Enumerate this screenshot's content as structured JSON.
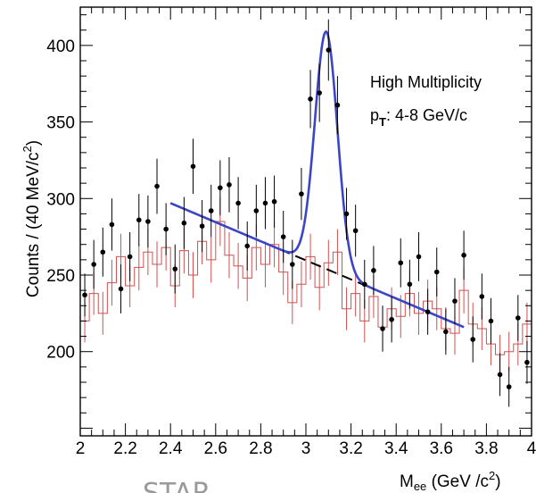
{
  "chart_data": {
    "type": "scatter",
    "xlabel_main": "M",
    "xlabel_sub": "ee",
    "xlabel_tail": " (GeV /c",
    "xlabel_sup": "2",
    "xlabel_end": ")",
    "ylabel_main": "Counts / (40 MeV/c",
    "ylabel_sup": "2",
    "ylabel_end": ")",
    "xlim": [
      2.0,
      4.0
    ],
    "ylim": [
      145,
      425
    ],
    "x_ticks": [
      2,
      2.2,
      2.4,
      2.6,
      2.8,
      3,
      3.2,
      3.4,
      3.6,
      3.8,
      4
    ],
    "x_tick_labels": [
      "2",
      "2.2",
      "2.4",
      "2.6",
      "2.8",
      "3",
      "3.2",
      "3.4",
      "3.6",
      "3.8",
      "4"
    ],
    "y_ticks": [
      200,
      250,
      300,
      350,
      400
    ],
    "y_tick_labels": [
      "200",
      "250",
      "300",
      "350",
      "400"
    ],
    "annotation_line1": "High Multiplicity",
    "annotation_p": "p",
    "annotation_sub": "T",
    "annotation_rest": ": 4-8 GeV/c",
    "watermark": "STAR",
    "series": [
      {
        "kind": "data_points",
        "color": "#000000",
        "x": [
          2.02,
          2.06,
          2.1,
          2.14,
          2.18,
          2.22,
          2.26,
          2.3,
          2.34,
          2.38,
          2.42,
          2.46,
          2.5,
          2.54,
          2.58,
          2.62,
          2.66,
          2.7,
          2.74,
          2.78,
          2.82,
          2.86,
          2.9,
          2.94,
          2.98,
          3.02,
          3.06,
          3.1,
          3.14,
          3.18,
          3.22,
          3.26,
          3.3,
          3.34,
          3.38,
          3.42,
          3.46,
          3.5,
          3.54,
          3.58,
          3.62,
          3.66,
          3.7,
          3.74,
          3.78,
          3.82,
          3.86,
          3.9,
          3.94,
          3.98
        ],
        "y": [
          237,
          257,
          265,
          283,
          241,
          262,
          286,
          285,
          308,
          280,
          254,
          284,
          321,
          282,
          292,
          307,
          309,
          297,
          269,
          292,
          297,
          298,
          275,
          257,
          303,
          365,
          369,
          397,
          361,
          290,
          279,
          244,
          253,
          215,
          221,
          258,
          244,
          262,
          226,
          252,
          213,
          233,
          263,
          208,
          236,
          220,
          185,
          177,
          222,
          193
        ],
        "err": [
          14,
          16,
          16,
          17,
          16,
          16,
          17,
          17,
          18,
          17,
          16,
          17,
          18,
          17,
          17,
          18,
          18,
          17,
          16,
          17,
          17,
          17,
          17,
          16,
          17,
          19,
          19,
          20,
          19,
          17,
          17,
          16,
          16,
          15,
          15,
          16,
          16,
          16,
          15,
          16,
          15,
          15,
          16,
          15,
          15,
          15,
          14,
          13,
          15,
          14
        ]
      },
      {
        "kind": "background_histogram",
        "color": "#d05050",
        "x": [
          2.02,
          2.06,
          2.1,
          2.14,
          2.18,
          2.22,
          2.26,
          2.3,
          2.34,
          2.38,
          2.42,
          2.46,
          2.5,
          2.54,
          2.58,
          2.62,
          2.66,
          2.7,
          2.74,
          2.78,
          2.82,
          2.86,
          2.9,
          2.94,
          2.98,
          3.02,
          3.06,
          3.1,
          3.14,
          3.18,
          3.22,
          3.26,
          3.3,
          3.34,
          3.38,
          3.42,
          3.46,
          3.5,
          3.54,
          3.58,
          3.62,
          3.66,
          3.7,
          3.74,
          3.78,
          3.82,
          3.86,
          3.9,
          3.94,
          3.98
        ],
        "y": [
          220,
          238,
          225,
          245,
          262,
          243,
          255,
          265,
          257,
          268,
          243,
          266,
          250,
          272,
          260,
          285,
          263,
          256,
          248,
          268,
          257,
          270,
          252,
          232,
          244,
          262,
          242,
          258,
          265,
          228,
          238,
          220,
          236,
          216,
          228,
          223,
          238,
          225,
          233,
          228,
          215,
          212,
          240,
          218,
          215,
          205,
          198,
          200,
          205,
          218
        ],
        "err": [
          14,
          14,
          14,
          15,
          15,
          14,
          15,
          15,
          15,
          15,
          14,
          15,
          15,
          15,
          15,
          16,
          15,
          15,
          15,
          15,
          15,
          15,
          15,
          14,
          15,
          15,
          15,
          15,
          15,
          14,
          15,
          14,
          14,
          14,
          14,
          14,
          15,
          14,
          14,
          14,
          14,
          14,
          15,
          14,
          14,
          14,
          13,
          13,
          14,
          14
        ]
      },
      {
        "kind": "signal_plus_background_fit",
        "color": "#3a45c8",
        "x_range": [
          2.4,
          3.7
        ],
        "background_intercept": 297,
        "background_slope": -62.3,
        "peak_mass": 3.09,
        "peak_height": 155,
        "peak_sigma": 0.05
      },
      {
        "kind": "background_fit",
        "color": "#000000",
        "style": "dashed",
        "x_range": [
          2.4,
          3.3
        ]
      }
    ]
  }
}
